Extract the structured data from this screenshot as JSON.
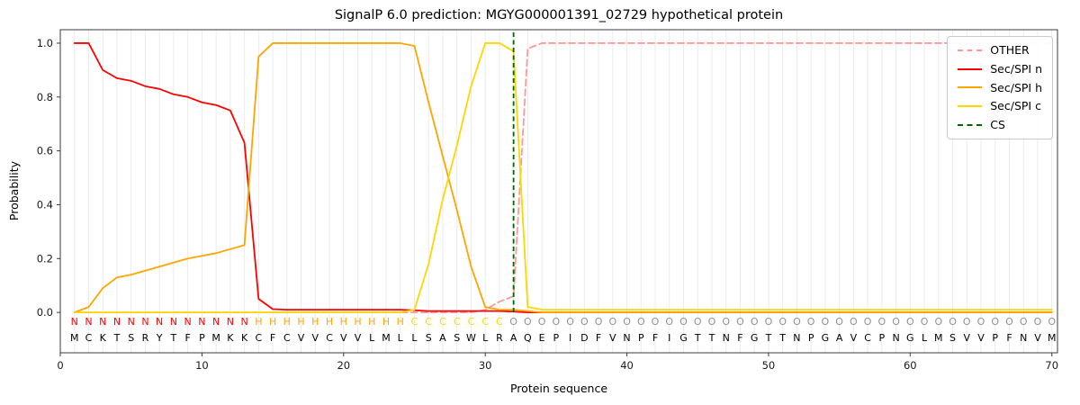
{
  "figure": {
    "title": "SignalP 6.0 prediction: MGYG000001391_02729 hypothetical protein"
  },
  "chart_data": {
    "type": "line",
    "title": "SignalP 6.0 prediction: MGYG000001391_02729 hypothetical protein",
    "xlabel": "Protein sequence",
    "ylabel": "Probability",
    "xlim": [
      0,
      70.4
    ],
    "ylim": [
      -0.15,
      1.05
    ],
    "x_ticks": [
      0,
      10,
      20,
      30,
      40,
      50,
      60,
      70
    ],
    "y_ticks": [
      0.0,
      0.2,
      0.4,
      0.6,
      0.8,
      1.0
    ],
    "grid": "light vertical gridline at each residue position",
    "legend_position": "upper right",
    "x_range": [
      1,
      70
    ],
    "sequence": "MCKTSRYTFPMKKCFCVVCVVLMLLSASWLRAQEPIDFVNPFIGTTNFGTTNPGAVCPNGLMSVVPFNVM",
    "region_labels": "NNNNNNNNNNNNNHHHHHHHHHHHCCCCCCCOOOOOOOOOOOOOOOOOOOOOOOOOOOOOOOOOOOOOOO",
    "region_colors": {
      "N": "#ff0000",
      "H": "#ffa500",
      "C": "#ffd700",
      "O": "#909090"
    },
    "series": [
      {
        "name": "OTHER",
        "color": "#ff9999",
        "style": "dashed",
        "values": [
          0,
          0,
          0,
          0,
          0,
          0,
          0,
          0,
          0,
          0,
          0,
          0,
          0,
          0,
          0,
          0,
          0,
          0,
          0,
          0,
          0,
          0,
          0,
          0,
          0,
          0,
          0,
          0,
          0,
          0.01,
          0.04,
          0.06,
          0.98,
          1,
          1,
          1,
          1,
          1,
          1,
          1,
          1,
          1,
          1,
          1,
          1,
          1,
          1,
          1,
          1,
          1,
          1,
          1,
          1,
          1,
          1,
          1,
          1,
          1,
          1,
          1,
          1,
          1,
          1,
          1,
          1,
          1,
          1,
          1,
          1,
          1
        ]
      },
      {
        "name": "Sec/SPI n",
        "color": "#ff0000",
        "style": "solid",
        "values": [
          1,
          1,
          0.9,
          0.87,
          0.86,
          0.84,
          0.83,
          0.81,
          0.8,
          0.78,
          0.77,
          0.75,
          0.63,
          0.05,
          0.012,
          0.01,
          0.01,
          0.01,
          0.01,
          0.01,
          0.01,
          0.01,
          0.01,
          0.01,
          0.008,
          0.005,
          0.005,
          0.005,
          0.005,
          0.005,
          0.005,
          0.003,
          0,
          0,
          0,
          0,
          0,
          0,
          0,
          0,
          0,
          0,
          0,
          0,
          0,
          0,
          0,
          0,
          0,
          0,
          0,
          0,
          0,
          0,
          0,
          0,
          0,
          0,
          0,
          0,
          0,
          0,
          0,
          0,
          0,
          0,
          0,
          0,
          0,
          0
        ]
      },
      {
        "name": "Sec/SPI h",
        "color": "#ffa500",
        "style": "solid",
        "values": [
          0,
          0.02,
          0.09,
          0.13,
          0.14,
          0.155,
          0.17,
          0.185,
          0.2,
          0.21,
          0.22,
          0.235,
          0.25,
          0.95,
          1,
          1,
          1,
          1,
          1,
          1,
          1,
          1,
          1,
          1,
          0.99,
          0.78,
          0.58,
          0.38,
          0.17,
          0.02,
          0.01,
          0.01,
          0.005,
          0,
          0,
          0,
          0,
          0,
          0,
          0,
          0,
          0,
          0,
          0,
          0,
          0,
          0,
          0,
          0,
          0,
          0,
          0,
          0,
          0,
          0,
          0,
          0,
          0,
          0,
          0,
          0,
          0,
          0,
          0,
          0,
          0,
          0,
          0,
          0,
          0
        ]
      },
      {
        "name": "Sec/SPI c",
        "color": "#ffd700",
        "style": "solid",
        "values": [
          0,
          0,
          0,
          0,
          0,
          0,
          0,
          0,
          0,
          0,
          0,
          0,
          0,
          0,
          0,
          0,
          0,
          0,
          0,
          0,
          0,
          0,
          0,
          0,
          0.01,
          0.18,
          0.42,
          0.62,
          0.84,
          1,
          1,
          0.97,
          0.02,
          0.01,
          0.01,
          0.01,
          0.01,
          0.01,
          0.01,
          0.01,
          0.01,
          0.01,
          0.01,
          0.01,
          0.01,
          0.01,
          0.01,
          0.01,
          0.01,
          0.01,
          0.01,
          0.01,
          0.01,
          0.01,
          0.01,
          0.01,
          0.01,
          0.01,
          0.01,
          0.01,
          0.01,
          0.01,
          0.01,
          0.01,
          0.01,
          0.01,
          0.01,
          0.01,
          0.01,
          0.01
        ]
      }
    ],
    "cs_line": {
      "name": "CS",
      "position": 32,
      "color": "#006400",
      "style": "dashed"
    }
  }
}
